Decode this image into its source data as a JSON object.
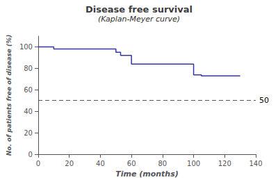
{
  "chart_data": {
    "type": "line",
    "title": "Disease free survival",
    "subtitle": "(Kaplan-Meyer curve)",
    "xlabel": "Time (months)",
    "ylabel": "No. of patients free of disease (%)",
    "x": [
      0,
      10,
      10,
      50,
      50,
      53,
      53,
      60,
      60,
      80,
      80,
      85,
      85,
      100,
      100,
      105,
      105,
      130
    ],
    "values": [
      100,
      100,
      98,
      98,
      95,
      95,
      92,
      92,
      84,
      84,
      84,
      84,
      84,
      84,
      74,
      74,
      73,
      73
    ],
    "color": "#3535aa",
    "xlim": [
      0,
      140
    ],
    "ylim": [
      0,
      110
    ],
    "xticks": [
      0,
      20,
      40,
      60,
      80,
      100,
      120,
      140
    ],
    "yticks": [
      0,
      20,
      40,
      60,
      80,
      100
    ],
    "grid": false,
    "annotations": [
      {
        "type": "hline",
        "y": 50,
        "label": "50",
        "color": "#555555",
        "line_style": "dashed"
      }
    ]
  }
}
